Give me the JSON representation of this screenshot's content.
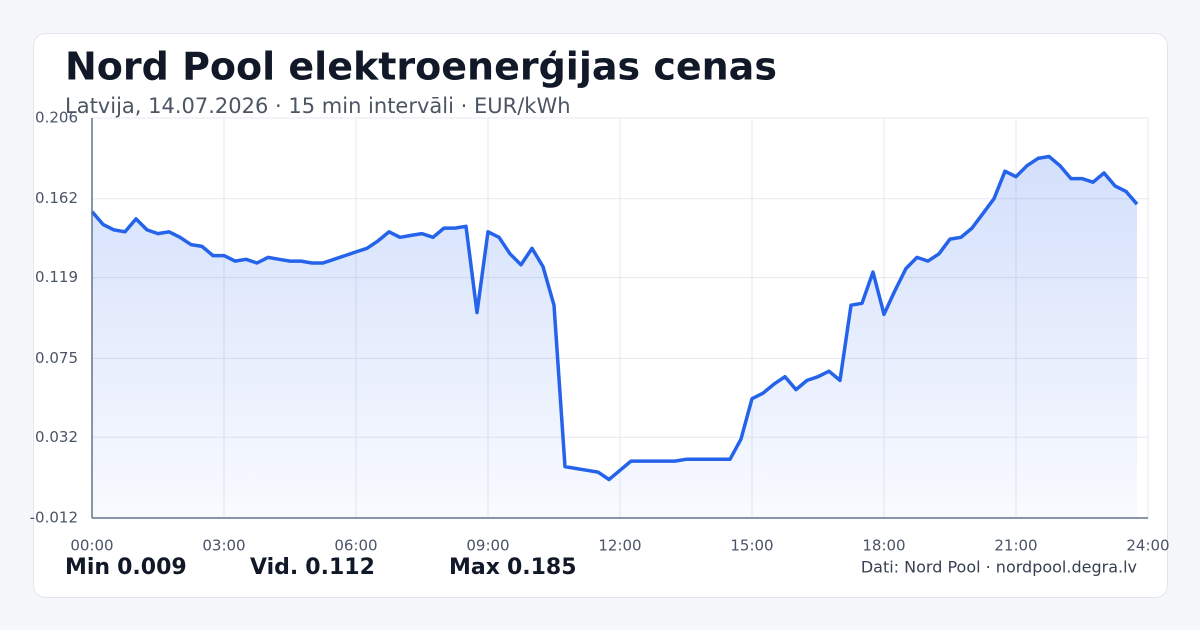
{
  "chart_data": {
    "type": "line",
    "title": "Nord Pool elektroenerģijas cenas",
    "subtitle": "Latvija, 14.07.2026 · 15 min intervāli · EUR/kWh",
    "color": "#2563eb",
    "x": [
      0,
      0.25,
      0.5,
      0.75,
      1,
      1.25,
      1.5,
      1.75,
      2,
      2.25,
      2.5,
      2.75,
      3,
      3.25,
      3.5,
      3.75,
      4,
      4.25,
      4.5,
      4.75,
      5,
      5.25,
      5.5,
      5.75,
      6,
      6.25,
      6.5,
      6.75,
      7,
      7.25,
      7.5,
      7.75,
      8,
      8.25,
      8.5,
      8.75,
      9,
      9.25,
      9.5,
      9.75,
      10,
      10.25,
      10.5,
      10.75,
      11,
      11.25,
      11.5,
      11.75,
      12,
      12.25,
      12.5,
      12.75,
      13,
      13.25,
      13.5,
      13.75,
      14,
      14.25,
      14.5,
      14.75,
      15,
      15.25,
      15.5,
      15.75,
      16,
      16.25,
      16.5,
      16.75,
      17,
      17.25,
      17.5,
      17.75,
      18,
      18.25,
      18.5,
      18.75,
      19,
      19.25,
      19.5,
      19.75,
      20,
      20.25,
      20.5,
      20.75,
      21,
      21.25,
      21.5,
      21.75,
      22,
      22.25,
      22.5,
      22.75,
      23,
      23.25,
      23.5,
      23.75
    ],
    "values": [
      0.155,
      0.148,
      0.145,
      0.144,
      0.151,
      0.145,
      0.143,
      0.144,
      0.141,
      0.137,
      0.136,
      0.131,
      0.131,
      0.128,
      0.129,
      0.127,
      0.13,
      0.129,
      0.128,
      0.128,
      0.127,
      0.127,
      0.129,
      0.131,
      0.133,
      0.135,
      0.139,
      0.144,
      0.141,
      0.142,
      0.143,
      0.141,
      0.146,
      0.146,
      0.147,
      0.1,
      0.144,
      0.141,
      0.132,
      0.126,
      0.135,
      0.125,
      0.104,
      0.016,
      0.015,
      0.014,
      0.013,
      0.009,
      0.014,
      0.019,
      0.019,
      0.019,
      0.019,
      0.019,
      0.02,
      0.02,
      0.02,
      0.02,
      0.02,
      0.031,
      0.053,
      0.056,
      0.061,
      0.065,
      0.058,
      0.063,
      0.065,
      0.068,
      0.063,
      0.104,
      0.105,
      0.122,
      0.099,
      0.112,
      0.124,
      0.13,
      0.128,
      0.132,
      0.14,
      0.141,
      0.146,
      0.154,
      0.162,
      0.177,
      0.174,
      0.18,
      0.184,
      0.185,
      0.18,
      0.173,
      0.173,
      0.171,
      0.176,
      0.169,
      0.166,
      0.159
    ],
    "xlim": [
      0,
      24
    ],
    "xticks": [
      {
        "value": 0,
        "label": "00:00"
      },
      {
        "value": 3,
        "label": "03:00"
      },
      {
        "value": 6,
        "label": "06:00"
      },
      {
        "value": 9,
        "label": "09:00"
      },
      {
        "value": 12,
        "label": "12:00"
      },
      {
        "value": 15,
        "label": "15:00"
      },
      {
        "value": 18,
        "label": "18:00"
      },
      {
        "value": 21,
        "label": "21:00"
      },
      {
        "value": 24,
        "label": "24:00"
      }
    ],
    "ylim": [
      -0.012,
      0.206
    ],
    "yticks": [
      -0.012,
      0.032,
      0.075,
      0.119,
      0.162,
      0.206
    ],
    "grid": true,
    "stats": [
      {
        "label": "Min",
        "value": 0.009
      },
      {
        "label": "Vid.",
        "value": 0.112
      },
      {
        "label": "Max",
        "value": 0.185
      }
    ],
    "source": "Dati: Nord Pool · nordpool.degra.lv"
  }
}
